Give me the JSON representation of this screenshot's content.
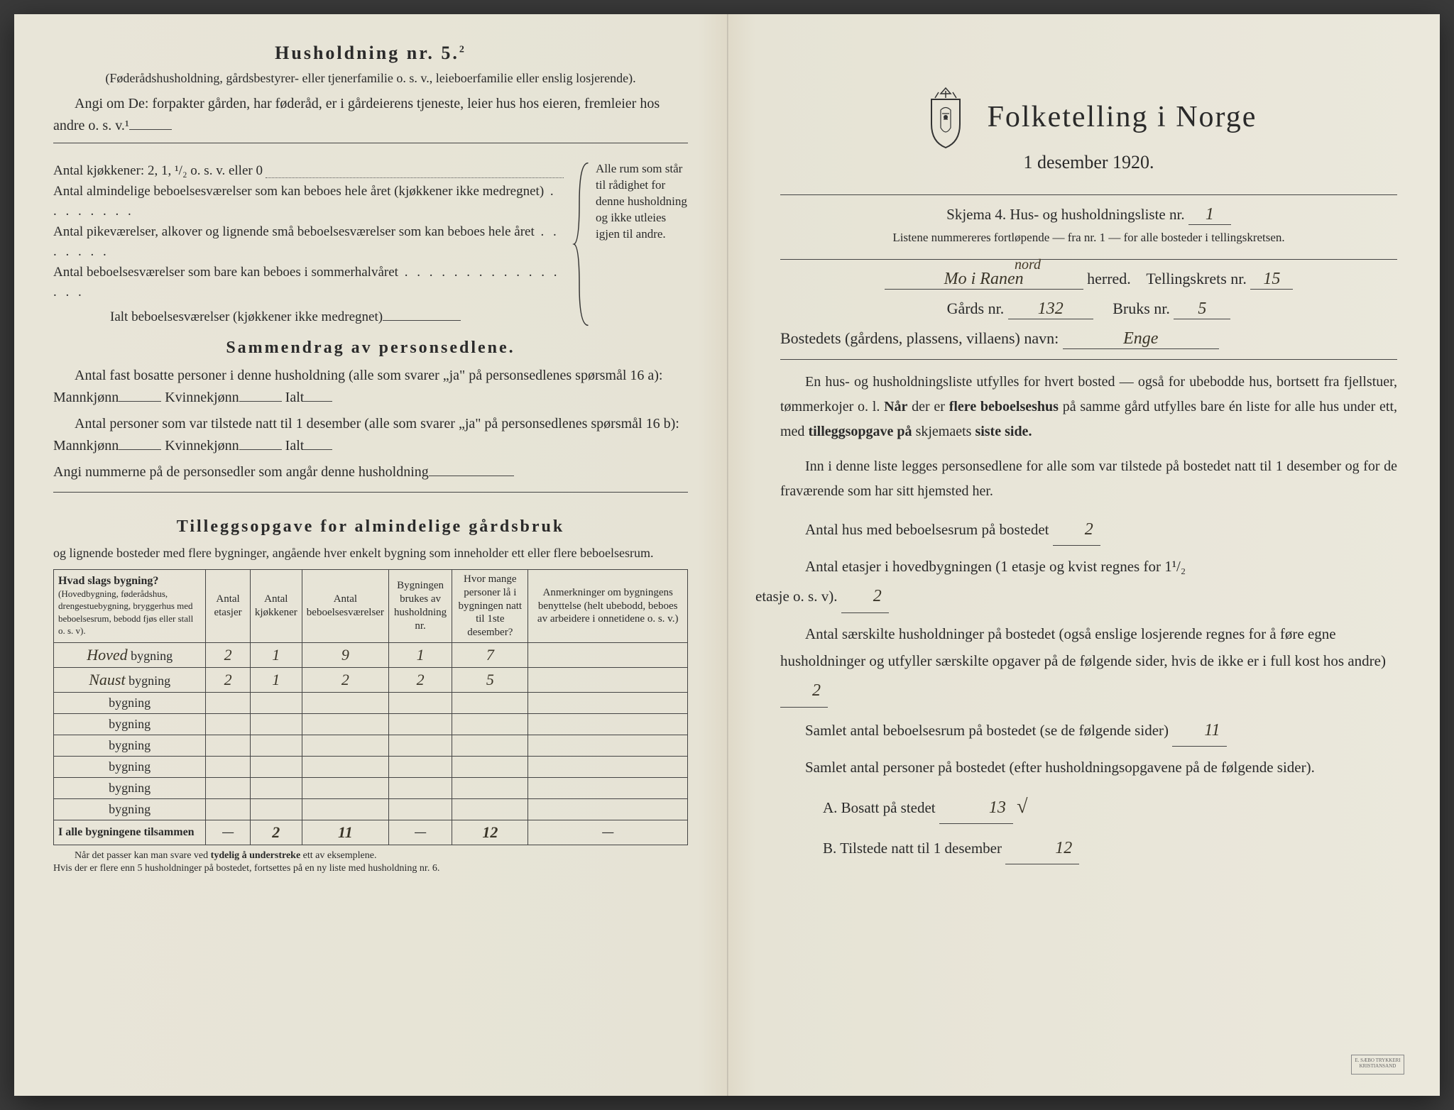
{
  "colors": {
    "paper": "#e8e5d8",
    "fold_shadow": "#dfd9c8",
    "ink": "#2a2a2a",
    "handwriting": "#3a3528",
    "border": "#444444"
  },
  "left": {
    "title": "Husholdning nr. 5.",
    "title_sup": "2",
    "subdesc": "(Føderådshusholdning, gårdsbestyrer- eller tjenerfamilie o. s. v., leieboerfamilie eller enslig losjerende).",
    "angi": "Angi om De: forpakter gården, har føderåd, er i gårdeierens tjeneste, leier hus hos eieren, fremleier hos andre o. s. v.¹",
    "kitchen_lines": [
      "Antal kjøkkener: 2, 1, ¹/₂ o. s. v. eller 0",
      "Antal almindelige beboelsesværelser som kan beboes hele året (kjøkkener ikke medregnet)",
      "Antal pikeværelser, alkover og lignende små beboelsesværelser som kan beboes hele året",
      "Antal beboelsesværelser som bare kan beboes i sommerhalvåret"
    ],
    "kitchen_total": "Ialt beboelsesværelser (kjøkkener ikke medregnet)",
    "brace_text": "Alle rum som står til rådighet for denne husholdning og ikke utleies igjen til andre.",
    "section2_title": "Sammendrag av personsedlene.",
    "s2_l1": "Antal fast bosatte personer i denne husholdning (alle som svarer „ja\" på personsedlenes spørsmål 16 a): Mannkjønn",
    "s2_kv": "Kvinnekjønn",
    "s2_ialt": "Ialt",
    "s2_l2": "Antal personer som var tilstede natt til 1 desember (alle som svarer „ja\" på personsedlenes spørsmål 16 b): Mannkjønn",
    "s2_l3": "Angi nummerne på de personsedler som angår denne husholdning",
    "section3_title": "Tilleggsopgave for almindelige gårdsbruk",
    "s3_sub": "og lignende bosteder med flere bygninger, angående hver enkelt bygning som inneholder ett eller flere beboelsesrum.",
    "table": {
      "headers": [
        "Hvad slags bygning?\n(Hovedbygning, føderådshus, drengestuebygning, bryggerhus med beboelsesrum, bebodd fjøs eller stall o. s. v).",
        "Antal etasjer",
        "Antal kjøkkener",
        "Antal beboelsesværelser",
        "Bygningen brukes av husholdning nr.",
        "Hvor mange personer lå i bygningen natt til 1ste desember?",
        "Anmerkninger om bygningens benyttelse (helt ubebodd, beboes av arbeidere i onnetidene o. s. v.)"
      ],
      "rows": [
        {
          "name": "Hoved",
          "suffix": "bygning",
          "etasjer": "2",
          "kjokkener": "1",
          "beboelse": "9",
          "hushold": "1",
          "personer": "7",
          "anm": ""
        },
        {
          "name": "Naust",
          "suffix": "bygning",
          "etasjer": "2",
          "kjokkener": "1",
          "beboelse": "2",
          "hushold": "2",
          "personer": "5",
          "anm": ""
        }
      ],
      "empty_rows": 6,
      "row_suffix": "bygning",
      "total_label": "I alle bygningene tilsammen",
      "totals": {
        "etasjer": "—",
        "kjokkener": "2",
        "beboelse": "11",
        "hushold": "—",
        "personer": "12",
        "anm": "—"
      }
    },
    "footnote": "Når det passer kan man svare ved tydelig å understreke ett av eksemplene.\nHvis der er flere enn 5 husholdninger på bostedet, fortsettes på en ny liste med husholdning nr. 6."
  },
  "right": {
    "main_title": "Folketelling i Norge",
    "date": "1 desember 1920.",
    "form_line_a": "Skjema 4.   Hus- og husholdningsliste nr.",
    "form_nr": "1",
    "small_note": "Listene nummereres fortløpende — fra nr. 1 — for alle bosteder i tellingskretsen.",
    "herred_hw": "Mo i Ranen",
    "herred_hw2": "nord",
    "herred_label": "herred.",
    "tellingskrets_label": "Tellingskrets nr.",
    "tellingskrets_hw": "15",
    "gards_label": "Gårds nr.",
    "gards_hw": "132",
    "bruks_label": "Bruks nr.",
    "bruks_hw": "5",
    "bosted_label": "Bostedets (gårdens, plassens, villaens) navn:",
    "bosted_hw": "Enge",
    "p1": "En hus- og husholdningsliste utfylles for hvert bosted — også for ubebodde hus, bortsett fra fjellstuer, tømmerkojer o. l. Når der er flere beboelseshus på samme gård utfylles bare én liste for alle hus under ett, med tilleggsopgave på skjemaets siste side.",
    "p2": "Inn i denne liste legges personsedlene for alle som var tilstede på bostedet natt til 1 desember og for de fraværende som har sitt hjemsted her.",
    "q1": "Antal hus med beboelsesrum på bostedet",
    "q1_hw": "2",
    "q2a": "Antal etasjer i hovedbygningen (1 etasje og kvist regnes for 1¹/₂",
    "q2b": "etasje o. s. v).",
    "q2_hw": "2",
    "q3a": "Antal særskilte husholdninger på bostedet (også enslige losjerende regnes for å føre egne husholdninger og utfyller særskilte opgaver på de følgende sider, hvis de ikke er i full kost hos andre)",
    "q3_hw": "2",
    "q4": "Samlet antal beboelsesrum på bostedet (se de følgende sider)",
    "q4_hw": "11",
    "q5": "Samlet antal personer på bostedet (efter husholdningsopgavene på de følgende sider).",
    "qA": "A.  Bosatt på stedet",
    "qA_hw": "13",
    "qA_mark": "√",
    "qB": "B.  Tilstede natt til 1 desember",
    "qB_hw": "12"
  }
}
